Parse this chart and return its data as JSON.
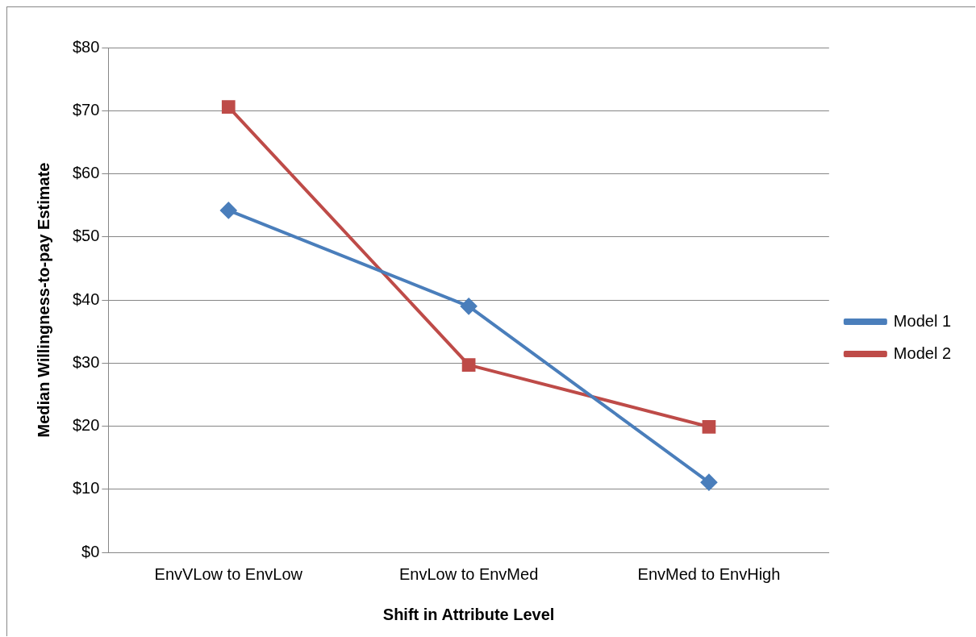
{
  "chart_data": {
    "type": "line",
    "xlabel": "Shift in Attribute Level",
    "ylabel": "Median Willingness-to-pay Estimate",
    "categories": [
      "EnvVLow to EnvLow",
      "EnvLow to EnvMed",
      "EnvMed to EnvHigh"
    ],
    "series": [
      {
        "name": "Model 1",
        "color": "#4a7ebb",
        "marker": "diamond",
        "values": [
          54.2,
          39.0,
          11.1
        ]
      },
      {
        "name": "Model 2",
        "color": "#be4b48",
        "marker": "square",
        "values": [
          70.6,
          29.7,
          19.9
        ]
      }
    ],
    "ylim": [
      0,
      80
    ],
    "yticks": [
      {
        "value": 0,
        "label": "$0"
      },
      {
        "value": 10,
        "label": "$10"
      },
      {
        "value": 20,
        "label": "$20"
      },
      {
        "value": 30,
        "label": "$30"
      },
      {
        "value": 40,
        "label": "$40"
      },
      {
        "value": 50,
        "label": "$50"
      },
      {
        "value": 60,
        "label": "$60"
      },
      {
        "value": 70,
        "label": "$70"
      },
      {
        "value": 80,
        "label": "$80"
      }
    ],
    "grid": "y",
    "legend": "right",
    "line_style": "solid"
  }
}
